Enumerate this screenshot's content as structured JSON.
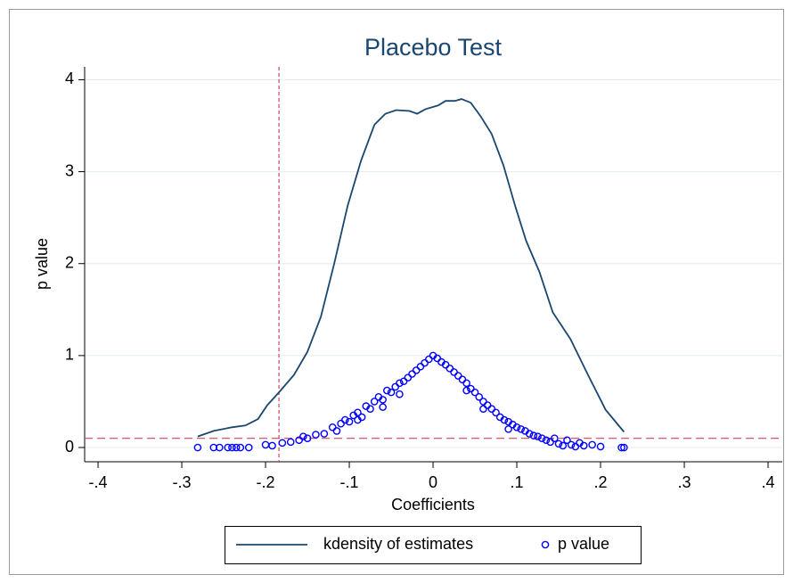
{
  "chart_data": {
    "type": "line",
    "title": "Placebo Test",
    "x_label": "Coefficients",
    "y_label": "p value",
    "xlim": [
      -0.416,
      0.417
    ],
    "ylim": [
      -0.155,
      4.14
    ],
    "xticks": [
      {
        "value": -0.4,
        "label": "-.4"
      },
      {
        "value": -0.3,
        "label": "-.3"
      },
      {
        "value": -0.2,
        "label": "-.2"
      },
      {
        "value": -0.1,
        "label": "-.1"
      },
      0,
      {
        "value": 0.1,
        "label": ".1"
      },
      {
        "value": 0.2,
        "label": ".2"
      },
      {
        "value": 0.3,
        "label": ".3"
      },
      {
        "value": 0.4,
        "label": ".4"
      }
    ],
    "yticks": [
      0,
      1,
      2,
      3,
      4
    ],
    "grid": true,
    "xline": -0.184,
    "yline": 0.1,
    "refline_color": "#d9405f",
    "legend": "bottom",
    "series": [
      {
        "name": "kdensity of estimates",
        "type": "line",
        "color": "#1a476f",
        "x": [
          -0.281,
          -0.262,
          -0.24,
          -0.224,
          -0.209,
          -0.198,
          -0.184,
          -0.166,
          -0.15,
          -0.134,
          -0.118,
          -0.102,
          -0.086,
          -0.07,
          -0.057,
          -0.044,
          -0.028,
          -0.019,
          -0.009,
          0.006,
          0.015,
          0.026,
          0.034,
          0.045,
          0.057,
          0.07,
          0.084,
          0.098,
          0.111,
          0.127,
          0.143,
          0.164,
          0.185,
          0.206,
          0.228
        ],
        "values": [
          0.12,
          0.18,
          0.22,
          0.24,
          0.31,
          0.46,
          0.6,
          0.79,
          1.04,
          1.42,
          2.0,
          2.63,
          3.12,
          3.51,
          3.63,
          3.67,
          3.66,
          3.63,
          3.68,
          3.72,
          3.77,
          3.77,
          3.79,
          3.75,
          3.6,
          3.41,
          3.07,
          2.63,
          2.25,
          1.91,
          1.47,
          1.18,
          0.79,
          0.41,
          0.17
        ]
      },
      {
        "name": "p value",
        "type": "scatter",
        "color": "#0000ff",
        "x": [
          -0.281,
          -0.262,
          -0.255,
          -0.245,
          -0.24,
          -0.235,
          -0.23,
          -0.22,
          -0.2,
          -0.192,
          -0.18,
          -0.17,
          -0.16,
          -0.155,
          -0.15,
          -0.14,
          -0.13,
          -0.12,
          -0.115,
          -0.11,
          -0.105,
          -0.1,
          -0.095,
          -0.09,
          -0.09,
          -0.085,
          -0.08,
          -0.075,
          -0.07,
          -0.065,
          -0.06,
          -0.06,
          -0.055,
          -0.05,
          -0.045,
          -0.04,
          -0.04,
          -0.035,
          -0.03,
          -0.025,
          -0.02,
          -0.015,
          -0.01,
          -0.005,
          0,
          0.005,
          0.01,
          0.015,
          0.02,
          0.025,
          0.03,
          0.035,
          0.04,
          0.04,
          0.045,
          0.05,
          0.055,
          0.06,
          0.06,
          0.065,
          0.07,
          0.075,
          0.08,
          0.085,
          0.09,
          0.09,
          0.095,
          0.1,
          0.105,
          0.11,
          0.115,
          0.12,
          0.125,
          0.13,
          0.135,
          0.14,
          0.145,
          0.15,
          0.155,
          0.16,
          0.165,
          0.17,
          0.175,
          0.18,
          0.19,
          0.2,
          0.225,
          0.228
        ],
        "values": [
          0.0,
          0.0,
          0.0,
          0.0,
          0.0,
          0.0,
          0.0,
          0.0,
          0.03,
          0.02,
          0.05,
          0.06,
          0.08,
          0.12,
          0.1,
          0.14,
          0.15,
          0.22,
          0.18,
          0.26,
          0.3,
          0.28,
          0.35,
          0.38,
          0.3,
          0.33,
          0.45,
          0.42,
          0.5,
          0.55,
          0.52,
          0.44,
          0.62,
          0.6,
          0.66,
          0.7,
          0.58,
          0.72,
          0.76,
          0.8,
          0.84,
          0.88,
          0.92,
          0.96,
          1.0,
          0.97,
          0.93,
          0.9,
          0.86,
          0.82,
          0.78,
          0.74,
          0.7,
          0.62,
          0.64,
          0.6,
          0.55,
          0.5,
          0.42,
          0.46,
          0.42,
          0.38,
          0.33,
          0.3,
          0.28,
          0.2,
          0.25,
          0.22,
          0.2,
          0.18,
          0.15,
          0.13,
          0.12,
          0.1,
          0.08,
          0.06,
          0.1,
          0.04,
          0.02,
          0.08,
          0.03,
          0.01,
          0.05,
          0.02,
          0.03,
          0.01,
          0.0,
          0.0
        ]
      }
    ]
  }
}
